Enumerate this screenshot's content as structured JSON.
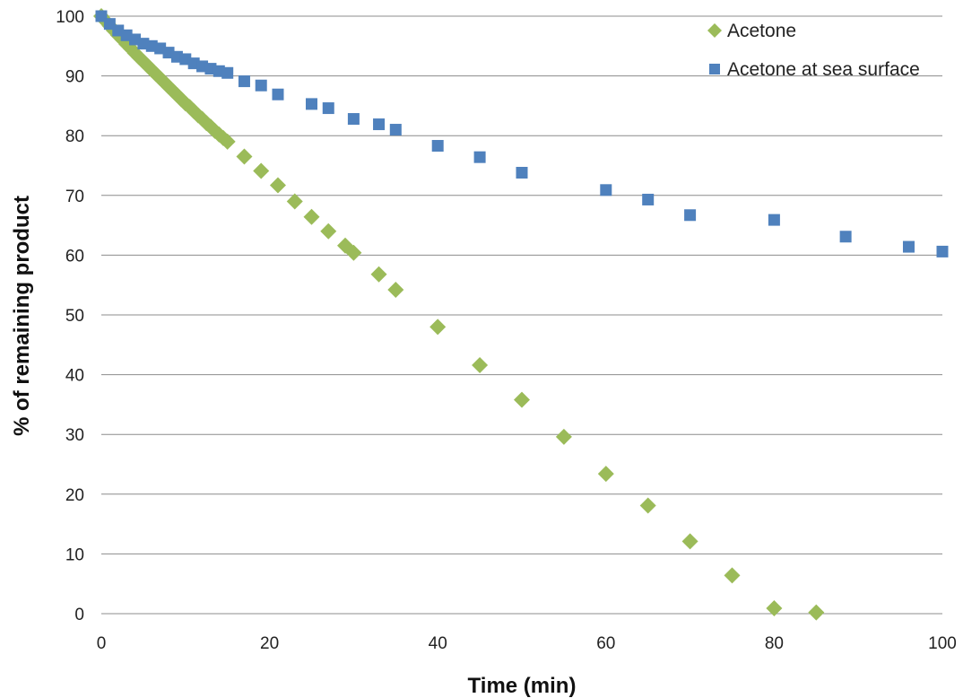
{
  "chart_data": {
    "type": "scatter",
    "title": "",
    "xlabel": "Time (min)",
    "ylabel": "% of remaining product",
    "xlim": [
      0,
      100
    ],
    "ylim": [
      0,
      100
    ],
    "xticks": [
      0,
      20,
      40,
      60,
      80,
      100
    ],
    "yticks": [
      0,
      10,
      20,
      30,
      40,
      50,
      60,
      70,
      80,
      90,
      100
    ],
    "grid": "horizontal",
    "legend_position": "top-right",
    "series": [
      {
        "name": "Acetone",
        "marker": "diamond",
        "color": "#9BBB59",
        "points": [
          [
            0,
            100
          ],
          [
            0.5,
            99.2
          ],
          [
            1,
            98.4
          ],
          [
            1.5,
            97.6
          ],
          [
            2,
            96.8
          ],
          [
            2.5,
            96.1
          ],
          [
            3,
            95.3
          ],
          [
            3.5,
            94.6
          ],
          [
            4,
            93.8
          ],
          [
            4.5,
            93.1
          ],
          [
            5,
            92.4
          ],
          [
            5.5,
            91.7
          ],
          [
            6,
            91.0
          ],
          [
            6.5,
            90.3
          ],
          [
            7,
            89.6
          ],
          [
            7.5,
            88.9
          ],
          [
            8,
            88.2
          ],
          [
            8.5,
            87.5
          ],
          [
            9,
            86.8
          ],
          [
            9.5,
            86.1
          ],
          [
            10,
            85.4
          ],
          [
            10.5,
            84.8
          ],
          [
            11,
            84.1
          ],
          [
            11.5,
            83.4
          ],
          [
            12,
            82.8
          ],
          [
            12.5,
            82.1
          ],
          [
            13,
            81.5
          ],
          [
            13.5,
            80.8
          ],
          [
            14,
            80.2
          ],
          [
            14.5,
            79.6
          ],
          [
            15,
            79.0
          ],
          [
            17,
            76.5
          ],
          [
            19,
            74.1
          ],
          [
            21,
            71.7
          ],
          [
            23,
            69.0
          ],
          [
            25,
            66.4
          ],
          [
            27,
            64.0
          ],
          [
            29,
            61.6
          ],
          [
            30,
            60.4
          ],
          [
            33,
            56.8
          ],
          [
            35,
            54.2
          ],
          [
            40,
            48.0
          ],
          [
            45,
            41.6
          ],
          [
            50,
            35.8
          ],
          [
            55,
            29.6
          ],
          [
            60,
            23.4
          ],
          [
            65,
            18.1
          ],
          [
            70,
            12.1
          ],
          [
            75,
            6.4
          ],
          [
            80,
            0.9
          ],
          [
            85,
            0.2
          ]
        ]
      },
      {
        "name": "Acetone at sea surface",
        "marker": "square",
        "color": "#4F81BD",
        "points": [
          [
            0,
            100
          ],
          [
            1,
            98.7
          ],
          [
            2,
            97.6
          ],
          [
            3,
            96.8
          ],
          [
            4,
            96.1
          ],
          [
            5,
            95.4
          ],
          [
            6,
            95.0
          ],
          [
            7,
            94.6
          ],
          [
            8,
            93.9
          ],
          [
            9,
            93.2
          ],
          [
            10,
            92.8
          ],
          [
            11,
            92.1
          ],
          [
            12,
            91.6
          ],
          [
            13,
            91.2
          ],
          [
            14,
            90.8
          ],
          [
            15,
            90.5
          ],
          [
            17,
            89.1
          ],
          [
            19,
            88.4
          ],
          [
            21,
            86.9
          ],
          [
            25,
            85.3
          ],
          [
            27,
            84.6
          ],
          [
            30,
            82.8
          ],
          [
            33,
            81.9
          ],
          [
            35,
            81.0
          ],
          [
            40,
            78.3
          ],
          [
            45,
            76.4
          ],
          [
            50,
            73.8
          ],
          [
            60,
            70.9
          ],
          [
            65,
            69.3
          ],
          [
            70,
            66.7
          ],
          [
            80,
            65.9
          ],
          [
            88.5,
            63.1
          ],
          [
            96,
            61.4
          ],
          [
            100,
            60.6
          ]
        ]
      }
    ]
  }
}
